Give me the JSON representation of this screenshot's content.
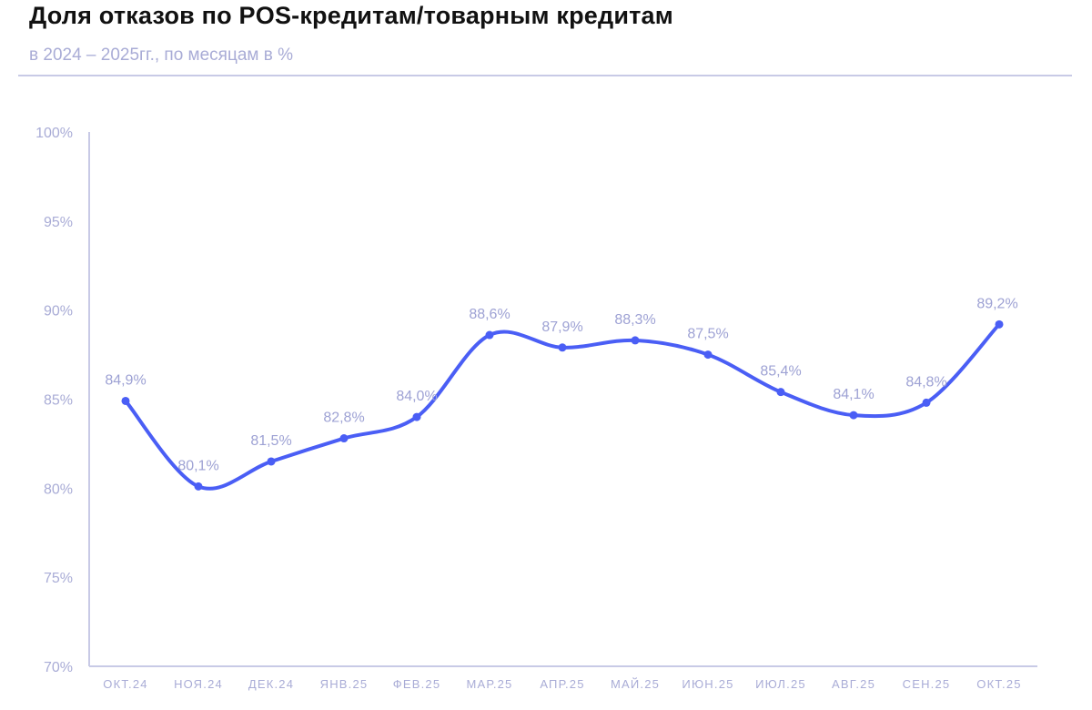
{
  "title": "Доля отказов по POS-кредитам/товарным кредитам",
  "subtitle": "в 2024 – 2025гг., по месяцам в %",
  "chart_data": {
    "type": "line",
    "categories": [
      "ОКТ.24",
      "НОЯ.24",
      "ДЕК.24",
      "ЯНВ.25",
      "ФЕВ.25",
      "МАР.25",
      "АПР.25",
      "МАЙ.25",
      "ИЮН.25",
      "ИЮЛ.25",
      "АВГ.25",
      "СЕН.25",
      "ОКТ.25"
    ],
    "values": [
      84.9,
      80.1,
      81.5,
      82.8,
      84.0,
      88.6,
      87.9,
      88.3,
      87.5,
      85.4,
      84.1,
      84.8,
      89.2
    ],
    "data_labels": [
      "84,9%",
      "80,1%",
      "81,5%",
      "82,8%",
      "84,0%",
      "88,6%",
      "87,9%",
      "88,3%",
      "87,5%",
      "85,4%",
      "84,1%",
      "84,8%",
      "89,2%"
    ],
    "yticks": [
      70,
      75,
      80,
      85,
      90,
      95,
      100
    ],
    "ytick_labels": [
      "70%",
      "75%",
      "80%",
      "85%",
      "90%",
      "95%",
      "100%"
    ],
    "ylim": [
      70,
      100
    ],
    "grid": false,
    "line_color": "#4a5ef5",
    "smooth": true
  }
}
